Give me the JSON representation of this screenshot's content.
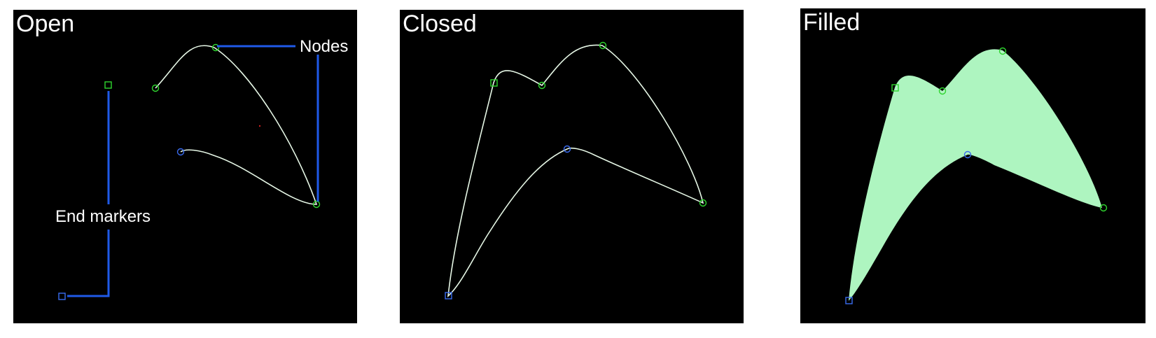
{
  "panels": {
    "open": {
      "title": "Open"
    },
    "closed": {
      "title": "Closed"
    },
    "filled": {
      "title": "Filled"
    }
  },
  "annotations": {
    "nodes_label": "Nodes",
    "end_markers_label": "End markers"
  },
  "colors": {
    "background": "#000000",
    "path_stroke": "#e6f7e6",
    "node_marker": "#2fd62f",
    "end_node_marker": "#3a6cf0",
    "callout_line": "#1f5ae8",
    "fill": "#aef5c0",
    "text": "#ffffff"
  },
  "icons": {
    "node_marker": "circle-node-icon",
    "start_marker": "square-end-marker-icon"
  }
}
